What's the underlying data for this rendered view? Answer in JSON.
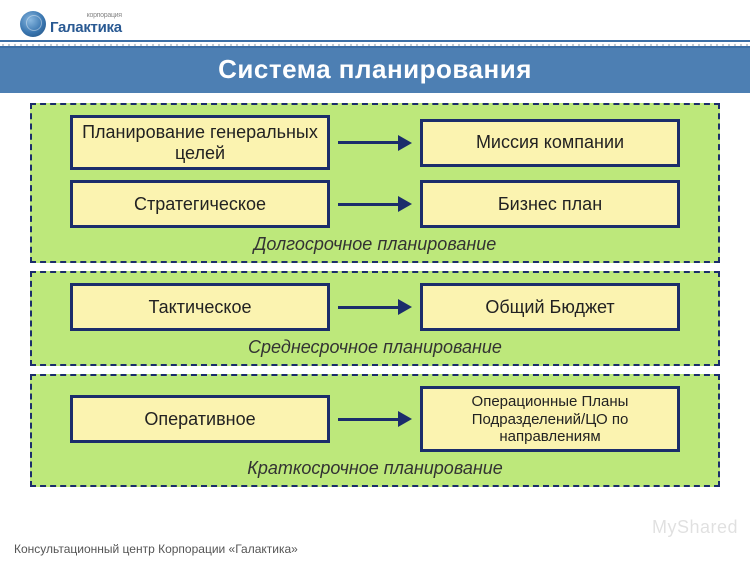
{
  "brand": {
    "name": "Галактика",
    "tag": "корпорация"
  },
  "title": "Система планирования",
  "colors": {
    "block_bg": "#bde87b",
    "block_border": "#1b2d6b",
    "card_bg": "#fbf3b0",
    "card_border": "#1b2d6b",
    "title_bg": "#4d7fb3",
    "arrow": "#1b2d6b"
  },
  "fonts": {
    "title_size": 26,
    "card_size": 18,
    "label_size": 18,
    "footer_size": 12
  },
  "blocks": [
    {
      "label": "Долгосрочное планирование",
      "rows": [
        {
          "left": "Планирование генеральных целей",
          "right": "Миссия компании"
        },
        {
          "left": "Стратегическое",
          "right": "Бизнес план"
        }
      ]
    },
    {
      "label": "Среднесрочное планирование",
      "rows": [
        {
          "left": "Тактическое",
          "right": "Общий Бюджет"
        }
      ]
    },
    {
      "label": "Краткосрочное планирование",
      "rows": [
        {
          "left": "Оперативное",
          "right": "Операционные Планы Подразделений/ЦО по направлениям"
        }
      ]
    }
  ],
  "footer": "Консультационный центр Корпорации «Галактика»",
  "watermark": "MyShared"
}
